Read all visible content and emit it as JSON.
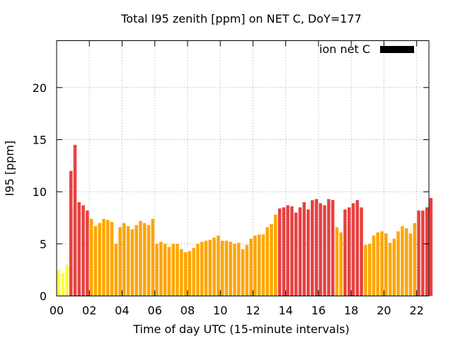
{
  "chart_data": {
    "type": "bar",
    "title": "Total I95 zenith [ppm] on NET C, DoY=177",
    "xlabel": "Time of day UTC (15-minute intervals)",
    "ylabel": "I95 [ppm]",
    "xlim": [
      0,
      22.75
    ],
    "ylim": [
      0,
      24.5
    ],
    "interval_hours": 0.25,
    "x_ticks": [
      {
        "value": 0,
        "label": "00"
      },
      {
        "value": 2,
        "label": "02"
      },
      {
        "value": 4,
        "label": "04"
      },
      {
        "value": 6,
        "label": "06"
      },
      {
        "value": 8,
        "label": "08"
      },
      {
        "value": 10,
        "label": "10"
      },
      {
        "value": 12,
        "label": "12"
      },
      {
        "value": 14,
        "label": "14"
      },
      {
        "value": 16,
        "label": "16"
      },
      {
        "value": 18,
        "label": "18"
      },
      {
        "value": 20,
        "label": "20"
      },
      {
        "value": 22,
        "label": "22"
      }
    ],
    "y_ticks": [
      {
        "value": 0,
        "label": "0"
      },
      {
        "value": 5,
        "label": "5"
      },
      {
        "value": 10,
        "label": "10"
      },
      {
        "value": 15,
        "label": "15"
      },
      {
        "value": 20,
        "label": "20"
      }
    ],
    "grid": true,
    "legend": {
      "label": "ion net C",
      "color": "#000000",
      "position": "top-right"
    },
    "level_colors": {
      "low": "#ffff33",
      "medium": "#ffa500",
      "high": "#e84040"
    },
    "values": [
      2.5,
      2.2,
      3.0,
      12.0,
      14.5,
      9.0,
      8.7,
      8.2,
      7.4,
      6.7,
      7.0,
      7.4,
      7.3,
      7.1,
      5.0,
      6.6,
      7.0,
      6.7,
      6.4,
      6.8,
      7.2,
      7.0,
      6.8,
      7.4,
      5.0,
      5.2,
      5.0,
      4.7,
      5.0,
      5.0,
      4.5,
      4.2,
      4.3,
      4.6,
      5.0,
      5.2,
      5.3,
      5.4,
      5.6,
      5.8,
      5.3,
      5.3,
      5.2,
      5.0,
      5.1,
      4.5,
      4.9,
      5.5,
      5.8,
      5.9,
      5.9,
      6.6,
      6.9,
      7.8,
      8.4,
      8.5,
      8.7,
      8.6,
      8.0,
      8.5,
      9.0,
      8.3,
      9.2,
      9.3,
      8.9,
      8.7,
      9.3,
      9.2,
      6.6,
      6.1,
      8.3,
      8.5,
      8.9,
      9.2,
      8.5,
      4.9,
      5.0,
      5.8,
      6.1,
      6.2,
      6.0,
      5.1,
      5.5,
      6.2,
      6.7,
      6.5,
      6.0,
      7.0,
      8.2,
      8.2,
      8.5,
      9.4
    ],
    "levels": [
      "low",
      "low",
      "low",
      "high",
      "high",
      "high",
      "high",
      "high",
      "medium",
      "medium",
      "medium",
      "medium",
      "medium",
      "medium",
      "medium",
      "medium",
      "medium",
      "medium",
      "medium",
      "medium",
      "medium",
      "medium",
      "medium",
      "medium",
      "medium",
      "medium",
      "medium",
      "medium",
      "medium",
      "medium",
      "medium",
      "medium",
      "medium",
      "medium",
      "medium",
      "medium",
      "medium",
      "medium",
      "medium",
      "medium",
      "medium",
      "medium",
      "medium",
      "medium",
      "medium",
      "medium",
      "medium",
      "medium",
      "medium",
      "medium",
      "medium",
      "medium",
      "medium",
      "medium",
      "high",
      "high",
      "high",
      "high",
      "high",
      "high",
      "high",
      "high",
      "high",
      "high",
      "high",
      "high",
      "high",
      "high",
      "medium",
      "medium",
      "high",
      "high",
      "high",
      "high",
      "high",
      "medium",
      "medium",
      "medium",
      "medium",
      "medium",
      "medium",
      "medium",
      "medium",
      "medium",
      "medium",
      "medium",
      "medium",
      "medium",
      "high",
      "high",
      "high",
      "high"
    ]
  }
}
